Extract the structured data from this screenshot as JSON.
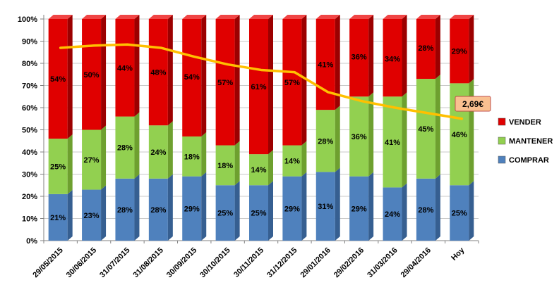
{
  "chart_data": {
    "type": "bar",
    "subtype": "100-percent-stacked-3d-columns-with-overlay-line",
    "title": "",
    "categories": [
      "29/05/2015",
      "30/06/2015",
      "31/07/2015",
      "31/08/2015",
      "30/09/2015",
      "30/10/2015",
      "30/11/2015",
      "31/12/2015",
      "29/01/2016",
      "29/02/2016",
      "31/03/2016",
      "29/04/2016",
      "Hoy"
    ],
    "series": [
      {
        "name": "COMPRAR",
        "color": "#4F81BD",
        "side_color": "#365F91",
        "values": [
          21,
          23,
          28,
          28,
          29,
          25,
          25,
          29,
          31,
          29,
          24,
          28,
          25
        ]
      },
      {
        "name": "MANTENER",
        "color": "#92D050",
        "side_color": "#6EA02F",
        "values": [
          25,
          27,
          28,
          24,
          18,
          18,
          14,
          14,
          28,
          36,
          41,
          45,
          46
        ]
      },
      {
        "name": "VENDER",
        "color": "#E00000",
        "side_color": "#9C0000",
        "top_color": "#F04545",
        "values": [
          54,
          50,
          44,
          48,
          54,
          57,
          61,
          57,
          41,
          36,
          34,
          28,
          29
        ]
      }
    ],
    "line_series": {
      "color": "#FFC000",
      "values_pct": [
        87,
        88,
        88.5,
        87,
        83,
        79.5,
        77,
        76,
        67,
        63,
        60,
        57.5,
        55
      ]
    },
    "annotation": {
      "text": "2,69€",
      "bg": "#FAC090",
      "border": "#C0504D",
      "text_color": "#000000"
    },
    "y_axis": {
      "min": 0,
      "max": 100,
      "tick_labels": [
        "0%",
        "10%",
        "20%",
        "30%",
        "40%",
        "50%",
        "60%",
        "70%",
        "80%",
        "90%",
        "100%"
      ]
    },
    "x_axis": {
      "labels_rotation": -45
    },
    "legend": {
      "position": "right",
      "entries": [
        {
          "label": "VENDER",
          "color": "#E00000"
        },
        {
          "label": "MANTENER",
          "color": "#92D050"
        },
        {
          "label": "COMPRAR",
          "color": "#4F81BD"
        }
      ]
    },
    "grid": true,
    "colors": {
      "gridline": "#C9C9C9",
      "axis": "#808080",
      "label": "#000000"
    }
  }
}
